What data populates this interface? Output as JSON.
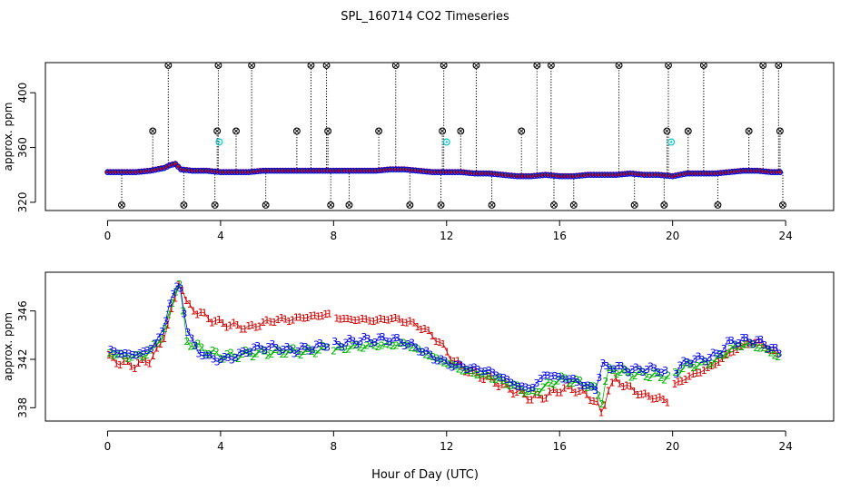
{
  "title": "SPL_160714  CO2 Timeseries",
  "xlabel": "Hour of Day (UTC)",
  "colors": {
    "series1": "#d00000",
    "series2": "#00b000",
    "series3": "#0000ee",
    "cyan": "#00c8c8",
    "black": "#000000"
  },
  "chart_data": [
    {
      "id": "top",
      "type": "scatter",
      "ylabel": "approx. ppm",
      "xlim": [
        -2.2,
        25.7
      ],
      "ylim": [
        314,
        422
      ],
      "xticks": [
        0,
        4,
        8,
        12,
        16,
        20,
        24
      ],
      "yticks": [
        320,
        360,
        400
      ],
      "baseline": {
        "x": [
          0,
          0.5,
          1,
          1.5,
          2,
          2.2,
          2.4,
          2.6,
          3,
          3.5,
          4,
          4.5,
          5,
          5.5,
          6,
          6.5,
          7,
          7.5,
          8,
          8.5,
          9,
          9.5,
          10,
          10.5,
          11,
          11.5,
          12,
          12.5,
          13,
          13.5,
          14,
          14.5,
          15,
          15.5,
          16,
          16.5,
          17,
          17.5,
          18,
          18.5,
          19,
          19.5,
          20,
          20.5,
          21,
          21.5,
          22,
          22.5,
          23,
          23.5,
          23.8
        ],
        "values": [
          342,
          342,
          342,
          343,
          345,
          347,
          348,
          344,
          343,
          343,
          342,
          342,
          342,
          343,
          343,
          343,
          343,
          343,
          343,
          343,
          343,
          343,
          344,
          344,
          343,
          342,
          342,
          342,
          341,
          341,
          340,
          339,
          339,
          340,
          339,
          339,
          340,
          340,
          340,
          341,
          340,
          340,
          339,
          341,
          341,
          341,
          342,
          343,
          343,
          342,
          342
        ]
      },
      "spikes": [
        {
          "x": 0.5,
          "v": 318
        },
        {
          "x": 1.6,
          "v": 372
        },
        {
          "x": 2.15,
          "v": 420
        },
        {
          "x": 2.7,
          "v": 318
        },
        {
          "x": 3.8,
          "v": 318
        },
        {
          "x": 3.88,
          "v": 372
        },
        {
          "x": 3.92,
          "v": 420
        },
        {
          "x": 4.55,
          "v": 372
        },
        {
          "x": 5.1,
          "v": 420
        },
        {
          "x": 5.6,
          "v": 318
        },
        {
          "x": 6.7,
          "v": 372
        },
        {
          "x": 7.2,
          "v": 420
        },
        {
          "x": 7.75,
          "v": 420
        },
        {
          "x": 7.8,
          "v": 372
        },
        {
          "x": 7.9,
          "v": 318
        },
        {
          "x": 8.55,
          "v": 318
        },
        {
          "x": 9.6,
          "v": 372
        },
        {
          "x": 10.2,
          "v": 420
        },
        {
          "x": 10.7,
          "v": 318
        },
        {
          "x": 11.8,
          "v": 318
        },
        {
          "x": 11.85,
          "v": 372
        },
        {
          "x": 11.9,
          "v": 420
        },
        {
          "x": 12.5,
          "v": 372
        },
        {
          "x": 13.05,
          "v": 420
        },
        {
          "x": 13.6,
          "v": 318
        },
        {
          "x": 14.65,
          "v": 372
        },
        {
          "x": 15.2,
          "v": 420
        },
        {
          "x": 15.7,
          "v": 420
        },
        {
          "x": 15.8,
          "v": 318
        },
        {
          "x": 16.5,
          "v": 318
        },
        {
          "x": 18.1,
          "v": 420
        },
        {
          "x": 18.65,
          "v": 318
        },
        {
          "x": 19.7,
          "v": 318
        },
        {
          "x": 19.8,
          "v": 372
        },
        {
          "x": 19.85,
          "v": 420
        },
        {
          "x": 20.55,
          "v": 372
        },
        {
          "x": 21.1,
          "v": 420
        },
        {
          "x": 21.6,
          "v": 318
        },
        {
          "x": 22.7,
          "v": 372
        },
        {
          "x": 23.2,
          "v": 420
        },
        {
          "x": 23.75,
          "v": 420
        },
        {
          "x": 23.8,
          "v": 372
        },
        {
          "x": 23.9,
          "v": 318
        }
      ],
      "cyan_points": [
        {
          "x": 3.95,
          "v": 364
        },
        {
          "x": 12.0,
          "v": 364
        },
        {
          "x": 19.95,
          "v": 364
        }
      ]
    },
    {
      "id": "bottom",
      "type": "scatter",
      "ylabel": "approx. ppm",
      "xlim": [
        -2.2,
        25.7
      ],
      "ylim": [
        336.9,
        349.2
      ],
      "xticks": [
        0,
        4,
        8,
        12,
        16,
        20,
        24
      ],
      "yticks": [
        338,
        342,
        346
      ],
      "gaps": [
        [
          7.85,
          8.0
        ],
        [
          19.85,
          20.05
        ]
      ],
      "series": [
        {
          "name": "1",
          "symbol": "1",
          "x": [
            0,
            0.5,
            1,
            1.5,
            1.8,
            2,
            2.2,
            2.4,
            2.55,
            2.8,
            3.5,
            4,
            4.5,
            5,
            5.5,
            6,
            6.5,
            7,
            7.5,
            7.8,
            8,
            8.5,
            9,
            9.5,
            10,
            10.5,
            11,
            11.5,
            11.9,
            12.2,
            12.6,
            13,
            13.5,
            14,
            14.5,
            15,
            15.5,
            16,
            16.5,
            17,
            17.3,
            17.5,
            17.7,
            18,
            18.5,
            19,
            19.5,
            19.8,
            20,
            20.5,
            21,
            21.5,
            22,
            22.5,
            23,
            23.5,
            23.8
          ],
          "values": [
            342.2,
            341.7,
            341.5,
            342,
            342.8,
            344,
            345.5,
            347,
            348.8,
            346.5,
            345.5,
            345,
            344.8,
            344.6,
            345,
            345.3,
            345.3,
            345.5,
            345.6,
            345.8,
            345.5,
            345.3,
            345.3,
            345.2,
            345.4,
            345.2,
            344.8,
            344,
            343,
            342,
            341.3,
            340.8,
            340.4,
            339.8,
            339.3,
            338.8,
            339,
            339.5,
            339.6,
            339,
            338.5,
            337.3,
            339.5,
            340.3,
            339.6,
            339,
            338.8,
            338.5,
            339.8,
            340.5,
            341,
            341.6,
            342.5,
            343.2,
            343.4,
            342.8,
            342.2
          ]
        },
        {
          "name": "2",
          "symbol": "2",
          "x": [
            0,
            0.5,
            1,
            1.5,
            2,
            2.2,
            2.4,
            2.55,
            2.8,
            3.5,
            4,
            4.5,
            5,
            5.5,
            6,
            6.5,
            7,
            7.5,
            7.8,
            8,
            8.5,
            9,
            9.5,
            10,
            10.5,
            11,
            11.5,
            11.9,
            12.2,
            12.6,
            13,
            13.5,
            14,
            14.5,
            15,
            15.5,
            16,
            16.5,
            17,
            17.3,
            17.5,
            17.7,
            18,
            18.5,
            19,
            19.5,
            19.8,
            20,
            20.5,
            21,
            21.5,
            22,
            22.5,
            23,
            23.5,
            23.8
          ],
          "values": [
            342.6,
            342.3,
            342.2,
            342.6,
            344.2,
            345.8,
            347.8,
            348.2,
            343.5,
            342.7,
            342.3,
            342.3,
            342.5,
            342.6,
            342.6,
            342.7,
            342.6,
            342.8,
            343,
            342.8,
            343,
            343.1,
            343.2,
            343.2,
            343.3,
            342.8,
            342.2,
            341.8,
            341.5,
            341.1,
            340.9,
            340.6,
            340.2,
            339.7,
            339.2,
            339.8,
            340.4,
            340.2,
            339.9,
            339.4,
            338.6,
            341,
            341.1,
            340.8,
            340.8,
            340.6,
            340.6,
            340.8,
            341.5,
            341.6,
            341.9,
            342.8,
            343.3,
            343.1,
            342.6,
            342.1
          ]
        },
        {
          "name": "3",
          "symbol": "3",
          "x": [
            0,
            0.5,
            1,
            1.5,
            2,
            2.2,
            2.4,
            2.55,
            2.8,
            3.2,
            3.8,
            4,
            4.5,
            5,
            5.5,
            6,
            6.5,
            7,
            7.5,
            7.8,
            8,
            8.5,
            9,
            9.5,
            10,
            10.5,
            11,
            11.5,
            11.9,
            12.2,
            12.6,
            13,
            13.5,
            14,
            14.5,
            15,
            15.5,
            16,
            16.5,
            17,
            17.3,
            17.5,
            17.7,
            18,
            18.5,
            19,
            19.5,
            19.8,
            20,
            20.5,
            21,
            21.5,
            22,
            22.5,
            23,
            23.5,
            23.8
          ],
          "values": [
            342.8,
            342.5,
            342.4,
            342.8,
            344.5,
            346.8,
            347.8,
            348.3,
            344.5,
            342.6,
            342,
            342,
            342.2,
            342.8,
            343,
            343,
            342.7,
            342.9,
            343.1,
            343.3,
            343.2,
            343.4,
            343.6,
            343.6,
            343.7,
            343.4,
            342.9,
            342.2,
            341.8,
            341.5,
            341.4,
            341.2,
            341,
            340.5,
            339.8,
            339.6,
            340.8,
            340.5,
            340.3,
            339.7,
            339.6,
            341.6,
            341.3,
            341.4,
            341.1,
            341.2,
            341.2,
            340.8,
            340.7,
            341.9,
            342,
            342.3,
            343.4,
            343.6,
            343.5,
            343,
            342.4
          ]
        }
      ]
    }
  ]
}
